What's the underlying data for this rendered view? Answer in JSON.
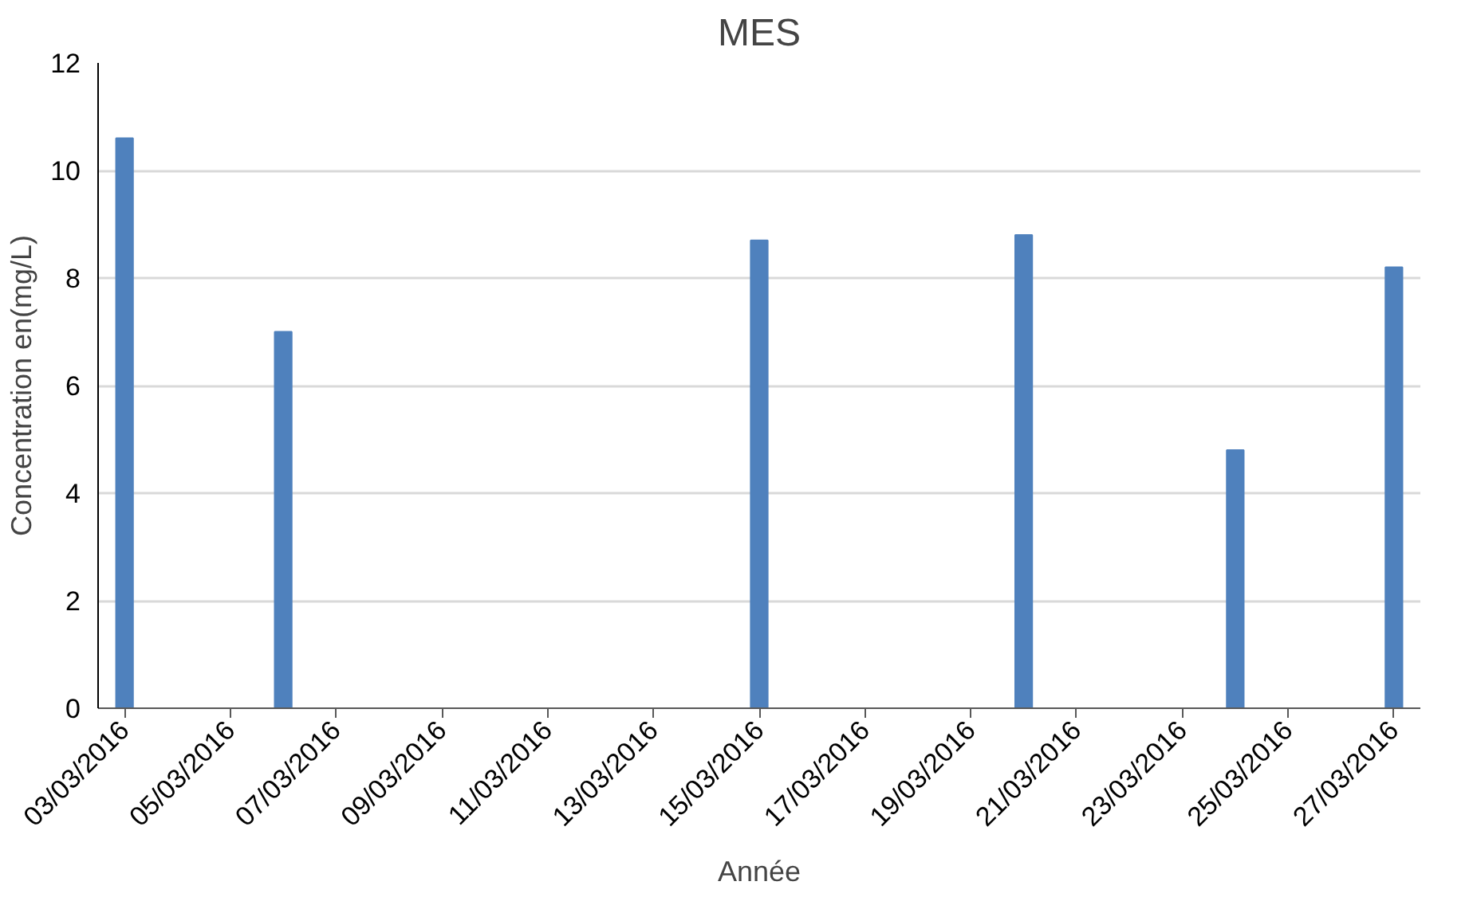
{
  "chart_data": {
    "type": "bar",
    "title": "MES",
    "xlabel": "Année",
    "ylabel": "Concentration en(mg/L)",
    "x": [
      "2016-03-03",
      "2016-03-06",
      "2016-03-15",
      "2016-03-20",
      "2016-03-24",
      "2016-03-27"
    ],
    "values": [
      10.6,
      7.0,
      8.7,
      8.8,
      4.8,
      8.2
    ],
    "color": "#4f81bd",
    "xlim": [
      "2016-03-02T12:00",
      "2016-03-27T12:00"
    ],
    "xticks": [
      {
        "value": "2016-03-03",
        "label": "03/03/2016"
      },
      {
        "value": "2016-03-05",
        "label": "05/03/2016"
      },
      {
        "value": "2016-03-07",
        "label": "07/03/2016"
      },
      {
        "value": "2016-03-09",
        "label": "09/03/2016"
      },
      {
        "value": "2016-03-11",
        "label": "11/03/2016"
      },
      {
        "value": "2016-03-13",
        "label": "13/03/2016"
      },
      {
        "value": "2016-03-15",
        "label": "15/03/2016"
      },
      {
        "value": "2016-03-17",
        "label": "17/03/2016"
      },
      {
        "value": "2016-03-19",
        "label": "19/03/2016"
      },
      {
        "value": "2016-03-21",
        "label": "21/03/2016"
      },
      {
        "value": "2016-03-23",
        "label": "23/03/2016"
      },
      {
        "value": "2016-03-25",
        "label": "25/03/2016"
      },
      {
        "value": "2016-03-27",
        "label": "27/03/2016"
      }
    ],
    "ylim": [
      0,
      12
    ],
    "yticks": [
      0,
      2,
      4,
      6,
      8,
      10,
      12
    ],
    "grid": "y"
  }
}
